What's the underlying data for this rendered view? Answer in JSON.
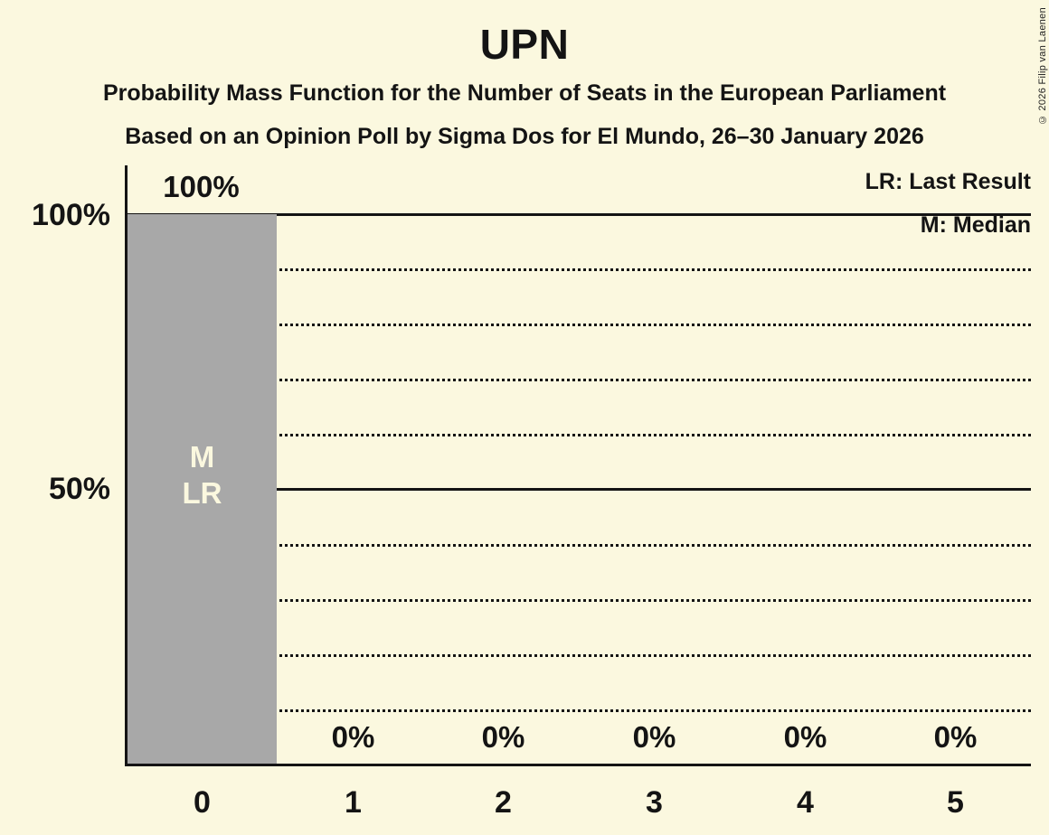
{
  "header": {
    "title": "UPN",
    "subtitle_line1": "Probability Mass Function for the Number of Seats in the European Parliament",
    "subtitle_line2": "Based on an Opinion Poll by Sigma Dos for El Mundo, 26–30 January 2026"
  },
  "copyright": "© 2026 Filip van Laenen",
  "legend": {
    "last_result": "LR: Last Result",
    "median": "M: Median"
  },
  "y_axis": {
    "label_100": "100%",
    "label_50": "50%"
  },
  "x_axis": {
    "ticks": [
      "0",
      "1",
      "2",
      "3",
      "4",
      "5"
    ]
  },
  "bars": [
    {
      "seats": "0",
      "value_label": "100%",
      "marker_median": "M",
      "marker_last_result": "LR"
    },
    {
      "seats": "1",
      "value_label": "0%"
    },
    {
      "seats": "2",
      "value_label": "0%"
    },
    {
      "seats": "3",
      "value_label": "0%"
    },
    {
      "seats": "4",
      "value_label": "0%"
    },
    {
      "seats": "5",
      "value_label": "0%"
    }
  ],
  "chart_data": {
    "type": "bar",
    "title": "UPN",
    "subtitle": "Probability Mass Function for the Number of Seats in the European Parliament",
    "source_line": "Based on an Opinion Poll by Sigma Dos for El Mundo, 26–30 January 2026",
    "categories": [
      "0",
      "1",
      "2",
      "3",
      "4",
      "5"
    ],
    "values": [
      100,
      0,
      0,
      0,
      0,
      0
    ],
    "value_labels": [
      "100%",
      "0%",
      "0%",
      "0%",
      "0%",
      "0%"
    ],
    "ylim": [
      0,
      100
    ],
    "y_ticks": [
      {
        "value": 100,
        "label": "100%"
      },
      {
        "value": 50,
        "label": "50%"
      }
    ],
    "gridlines": {
      "solid_percent": [
        100,
        50
      ],
      "dotted_percent": [
        90,
        80,
        70,
        60,
        40,
        30,
        20,
        10
      ]
    },
    "legend": [
      "LR: Last Result",
      "M: Median"
    ],
    "legend_position": "top-right",
    "annotations": [
      {
        "category": "0",
        "labels": [
          "M",
          "LR"
        ]
      }
    ],
    "median_seats": 0,
    "last_result_seats": 0,
    "colors": {
      "bar": "#A8A8A8",
      "background": "#FBF8DF",
      "text": "#141414",
      "bar_inner_text": "#FBF8DF"
    }
  }
}
